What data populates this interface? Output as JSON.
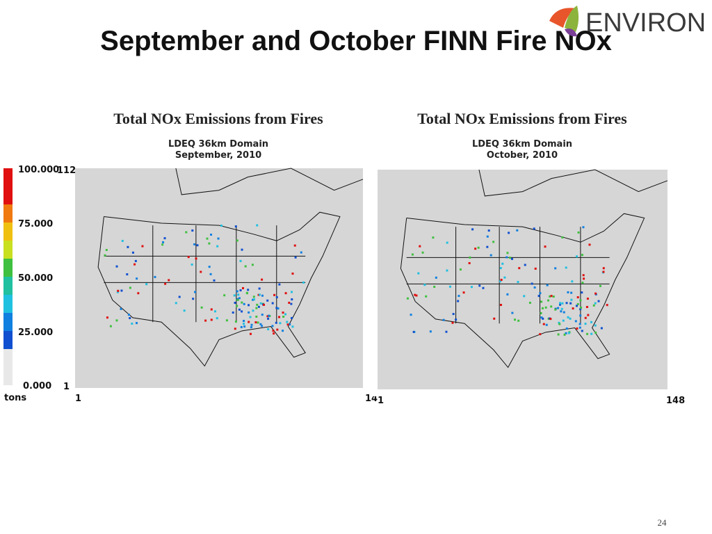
{
  "header": {
    "title": "September and October FINN Fire NOx",
    "logo": "ENVIRON"
  },
  "colorbar": {
    "labels": [
      "100.000",
      "75.000",
      "50.000",
      "25.000",
      "0.000"
    ],
    "unit": "tons"
  },
  "panels": [
    {
      "title": "Total NOx Emissions from Fires",
      "subtitle": [
        "LDEQ 36km Domain",
        "September, 2010"
      ],
      "y_axis": [
        "112",
        "1"
      ],
      "x_axis": [
        "1",
        "14"
      ]
    },
    {
      "title": "Total NOx Emissions from Fires",
      "subtitle": [
        "LDEQ 36km Domain",
        "October, 2010"
      ],
      "x_axis": [
        "1",
        "148"
      ]
    }
  ],
  "page_number": "24"
}
